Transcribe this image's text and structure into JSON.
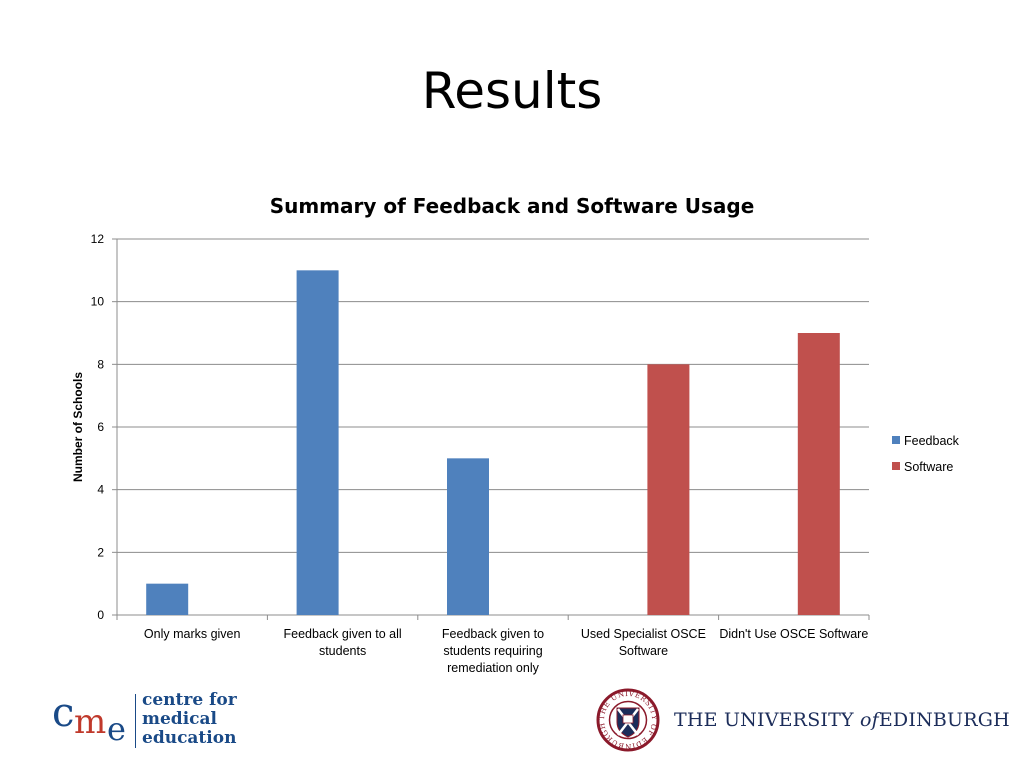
{
  "slide": {
    "title": "Results"
  },
  "chart_data": {
    "type": "bar",
    "title": "Summary of Feedback and Software Usage",
    "ylabel": "Number of Schools",
    "xlabel": "",
    "ylim": [
      0,
      12
    ],
    "yticks": [
      0,
      2,
      4,
      6,
      8,
      10,
      12
    ],
    "grid": true,
    "legend_position": "right",
    "categories": [
      "Only marks given",
      "Feedback given to all students",
      "Feedback given to students requiring remediation only",
      "Used Specialist OSCE Software",
      "Didn't Use OSCE Software"
    ],
    "category_label_lines": [
      [
        "Only marks given"
      ],
      [
        "Feedback given to all",
        "students"
      ],
      [
        "Feedback given to",
        "students requiring",
        "remediation only"
      ],
      [
        "Used Specialist OSCE",
        "Software"
      ],
      [
        "Didn't Use OSCE Software"
      ]
    ],
    "series": [
      {
        "name": "Feedback",
        "color": "#4f81bd",
        "values": [
          1,
          11,
          5,
          null,
          null
        ]
      },
      {
        "name": "Software",
        "color": "#c0504d",
        "values": [
          null,
          null,
          null,
          8,
          9
        ]
      }
    ]
  },
  "logos": {
    "cme": {
      "letters": [
        "c",
        "m",
        "e"
      ],
      "lines": [
        "centre for",
        "medical",
        "education"
      ]
    },
    "university": {
      "name_before": "THE UNIVERSITY",
      "name_of": "of",
      "name_after": "EDINBURGH",
      "seal_text": "THE UNIVERSITY OF EDINBURGH"
    }
  }
}
